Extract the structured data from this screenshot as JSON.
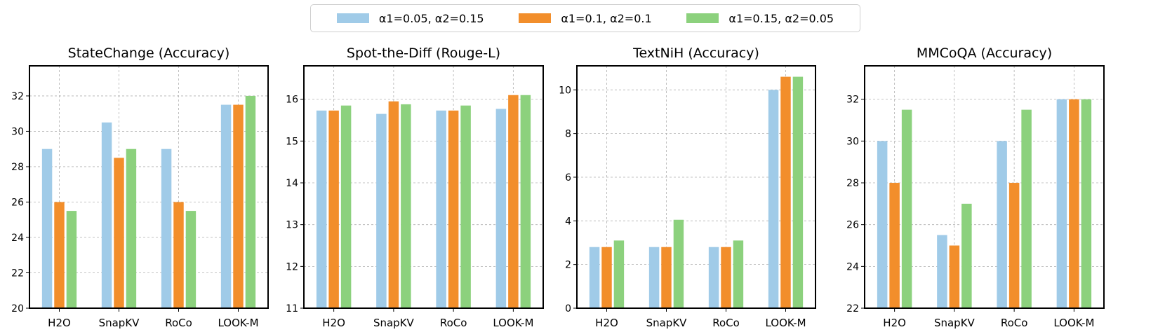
{
  "legend": {
    "items": [
      {
        "label": "α1=0.05, α2=0.15",
        "color": "#a0cbe8"
      },
      {
        "label": "α1=0.1, α2=0.1",
        "color": "#f28e2b"
      },
      {
        "label": "α1=0.15, α2=0.05",
        "color": "#8cd17d"
      }
    ]
  },
  "chart_data": [
    {
      "type": "bar",
      "title": "StateChange (Accuracy)",
      "categories": [
        "H2O",
        "SnapKV",
        "RoCo",
        "LOOK-M"
      ],
      "ylim": [
        20,
        33.7
      ],
      "yticks": [
        20,
        22,
        24,
        26,
        28,
        30,
        32
      ],
      "grid": true,
      "series": [
        {
          "name": "α1=0.05, α2=0.15",
          "values": [
            29.0,
            30.5,
            29.0,
            31.5
          ]
        },
        {
          "name": "α1=0.1, α2=0.1",
          "values": [
            26.0,
            28.5,
            26.0,
            31.5
          ]
        },
        {
          "name": "α1=0.15, α2=0.05",
          "values": [
            25.5,
            29.0,
            25.5,
            32.0
          ]
        }
      ]
    },
    {
      "type": "bar",
      "title": "Spot-the-Diff (Rouge-L)",
      "categories": [
        "H2O",
        "SnapKV",
        "RoCo",
        "LOOK-M"
      ],
      "ylim": [
        11,
        16.8
      ],
      "yticks": [
        11,
        12,
        13,
        14,
        15,
        16
      ],
      "grid": true,
      "series": [
        {
          "name": "α1=0.05, α2=0.15",
          "values": [
            15.73,
            15.65,
            15.73,
            15.77
          ]
        },
        {
          "name": "α1=0.1, α2=0.1",
          "values": [
            15.73,
            15.95,
            15.73,
            16.1
          ]
        },
        {
          "name": "α1=0.15, α2=0.05",
          "values": [
            15.85,
            15.88,
            15.85,
            16.1
          ]
        }
      ]
    },
    {
      "type": "bar",
      "title": "TextNiH (Accuracy)",
      "categories": [
        "H2O",
        "SnapKV",
        "RoCo",
        "LOOK-M"
      ],
      "ylim": [
        0,
        11.1
      ],
      "yticks": [
        0,
        2,
        4,
        6,
        8,
        10
      ],
      "grid": true,
      "series": [
        {
          "name": "α1=0.05, α2=0.15",
          "values": [
            2.8,
            2.8,
            2.8,
            10.0
          ]
        },
        {
          "name": "α1=0.1, α2=0.1",
          "values": [
            2.8,
            2.8,
            2.8,
            10.6
          ]
        },
        {
          "name": "α1=0.15, α2=0.05",
          "values": [
            3.1,
            4.05,
            3.1,
            10.6
          ]
        }
      ]
    },
    {
      "type": "bar",
      "title": "MMCoQA (Accuracy)",
      "categories": [
        "H2O",
        "SnapKV",
        "RoCo",
        "LOOK-M"
      ],
      "ylim": [
        22,
        33.6
      ],
      "yticks": [
        22,
        24,
        26,
        28,
        30,
        32
      ],
      "grid": true,
      "series": [
        {
          "name": "α1=0.05, α2=0.15",
          "values": [
            30.0,
            25.5,
            30.0,
            32.0
          ]
        },
        {
          "name": "α1=0.1, α2=0.1",
          "values": [
            28.0,
            25.0,
            28.0,
            32.0
          ]
        },
        {
          "name": "α1=0.15, α2=0.05",
          "values": [
            31.5,
            27.0,
            31.5,
            32.0
          ]
        }
      ]
    }
  ]
}
